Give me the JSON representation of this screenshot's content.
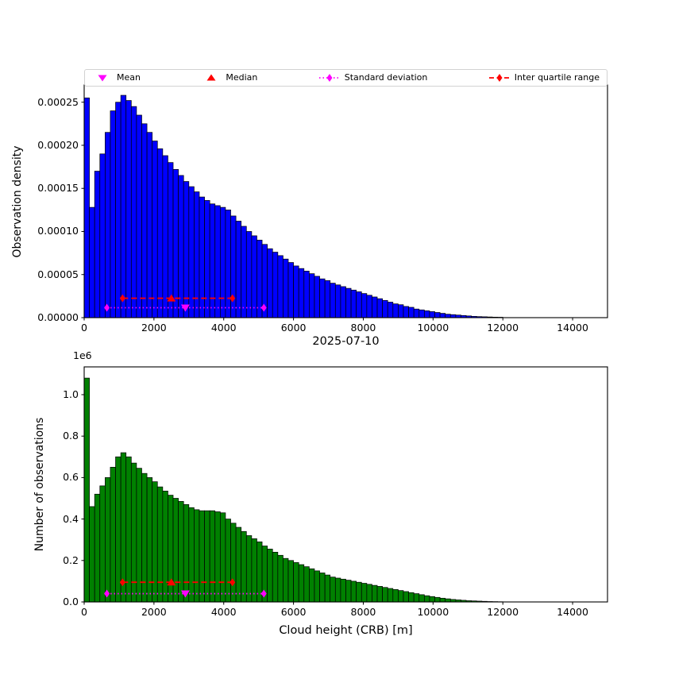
{
  "figure": {
    "title": "2025-07-10",
    "xlabel": "Cloud height (CRB) [m]",
    "top_ylabel": "Observation density",
    "bottom_ylabel": "Number of observations",
    "offset_text": "1e6",
    "background_color": "#ffffff"
  },
  "legend": {
    "items": [
      {
        "label": "Mean",
        "marker": "triangle-down",
        "color": "#ff00ff",
        "linestyle": "none"
      },
      {
        "label": "Median",
        "marker": "triangle-up",
        "color": "#ff0000",
        "linestyle": "none"
      },
      {
        "label": "Standard deviation",
        "marker": "diamond",
        "color": "#ff00ff",
        "linestyle": "dotted"
      },
      {
        "label": "Inter quartile range",
        "marker": "diamond",
        "color": "#ff0000",
        "linestyle": "dashed"
      }
    ]
  },
  "chart_data": [
    {
      "type": "bar",
      "name": "observation-density-histogram",
      "ylabel": "Observation density",
      "bar_color": "#0000ff",
      "edge_color": "#000000",
      "bin_start": 0,
      "bin_width": 150,
      "xlim": [
        0,
        15000
      ],
      "ylim": [
        0,
        0.00027
      ],
      "xticks": [
        0,
        2000,
        4000,
        6000,
        8000,
        10000,
        12000,
        14000
      ],
      "xtick_labels": [
        "0",
        "2000",
        "4000",
        "6000",
        "8000",
        "10000",
        "12000",
        "14000"
      ],
      "yticks": [
        0,
        5e-05,
        0.0001,
        0.00015,
        0.0002,
        0.00025
      ],
      "ytick_labels": [
        "0.00000",
        "0.00005",
        "0.00010",
        "0.00015",
        "0.00020",
        "0.00025"
      ],
      "values": [
        0.000255,
        0.000128,
        0.00017,
        0.00019,
        0.000215,
        0.00024,
        0.00025,
        0.000258,
        0.000252,
        0.000245,
        0.000235,
        0.000225,
        0.000215,
        0.000205,
        0.000196,
        0.000188,
        0.00018,
        0.000172,
        0.000165,
        0.000158,
        0.000152,
        0.000146,
        0.00014,
        0.000136,
        0.000132,
        0.00013,
        0.000128,
        0.000125,
        0.000118,
        0.000112,
        0.000106,
        0.0001,
        9.5e-05,
        9e-05,
        8.5e-05,
        8e-05,
        7.6e-05,
        7.2e-05,
        6.8e-05,
        6.4e-05,
        6e-05,
        5.7e-05,
        5.4e-05,
        5.1e-05,
        4.8e-05,
        4.5e-05,
        4.3e-05,
        4e-05,
        3.8e-05,
        3.6e-05,
        3.4e-05,
        3.2e-05,
        3e-05,
        2.8e-05,
        2.6e-05,
        2.4e-05,
        2.2e-05,
        2e-05,
        1.8e-05,
        1.6e-05,
        1.5e-05,
        1.3e-05,
        1.2e-05,
        1e-05,
        9e-06,
        8e-06,
        7e-06,
        6e-06,
        5e-06,
        4e-06,
        3.5e-06,
        3e-06,
        2.5e-06,
        2e-06,
        1.5e-06,
        1.2e-06,
        1e-06,
        8e-07,
        6e-07,
        5e-07
      ],
      "annotations": {
        "mean": {
          "x": 2900,
          "y": 1.15e-05,
          "color": "#ff00ff",
          "marker": "triangle-down"
        },
        "median": {
          "x": 2500,
          "y": 2.25e-05,
          "color": "#ff0000",
          "marker": "triangle-up"
        },
        "std_range": {
          "x1": 650,
          "x2": 5150,
          "y": 1.15e-05,
          "color": "#ff00ff",
          "linestyle": "dotted"
        },
        "iqr": {
          "x1": 1100,
          "x2": 4250,
          "y": 2.25e-05,
          "color": "#ff0000",
          "linestyle": "dashed"
        }
      }
    },
    {
      "type": "bar",
      "name": "observation-count-histogram",
      "ylabel": "Number of observations",
      "y_scale_label": "1e6",
      "bar_color": "#008000",
      "edge_color": "#000000",
      "bin_start": 0,
      "bin_width": 150,
      "xlim": [
        0,
        15000
      ],
      "ylim": [
        0,
        1134000
      ],
      "xticks": [
        0,
        2000,
        4000,
        6000,
        8000,
        10000,
        12000,
        14000
      ],
      "xtick_labels": [
        "0",
        "2000",
        "4000",
        "6000",
        "8000",
        "10000",
        "12000",
        "14000"
      ],
      "yticks": [
        0,
        200000,
        400000,
        600000,
        800000,
        1000000
      ],
      "ytick_labels": [
        "0.0",
        "0.2",
        "0.4",
        "0.6",
        "0.8",
        "1.0"
      ],
      "values": [
        1080000,
        460000,
        520000,
        560000,
        600000,
        650000,
        700000,
        720000,
        700000,
        670000,
        645000,
        620000,
        600000,
        580000,
        555000,
        535000,
        515000,
        500000,
        485000,
        470000,
        455000,
        445000,
        440000,
        440000,
        440000,
        435000,
        430000,
        400000,
        380000,
        360000,
        340000,
        320000,
        305000,
        290000,
        270000,
        255000,
        240000,
        225000,
        210000,
        200000,
        190000,
        180000,
        170000,
        160000,
        150000,
        140000,
        130000,
        120000,
        115000,
        110000,
        105000,
        100000,
        95000,
        90000,
        85000,
        80000,
        75000,
        70000,
        65000,
        60000,
        55000,
        50000,
        45000,
        40000,
        35000,
        30000,
        26000,
        22000,
        18000,
        15000,
        12000,
        10000,
        8000,
        6000,
        5000,
        4000,
        3000,
        2000,
        1500,
        1000
      ],
      "annotations": {
        "mean": {
          "x": 2900,
          "y": 40000,
          "color": "#ff00ff",
          "marker": "triangle-down"
        },
        "median": {
          "x": 2500,
          "y": 95000,
          "color": "#ff0000",
          "marker": "triangle-up"
        },
        "std_range": {
          "x1": 650,
          "x2": 5150,
          "y": 40000,
          "color": "#ff00ff",
          "linestyle": "dotted"
        },
        "iqr": {
          "x1": 1100,
          "x2": 4250,
          "y": 95000,
          "color": "#ff0000",
          "linestyle": "dashed"
        }
      }
    }
  ]
}
